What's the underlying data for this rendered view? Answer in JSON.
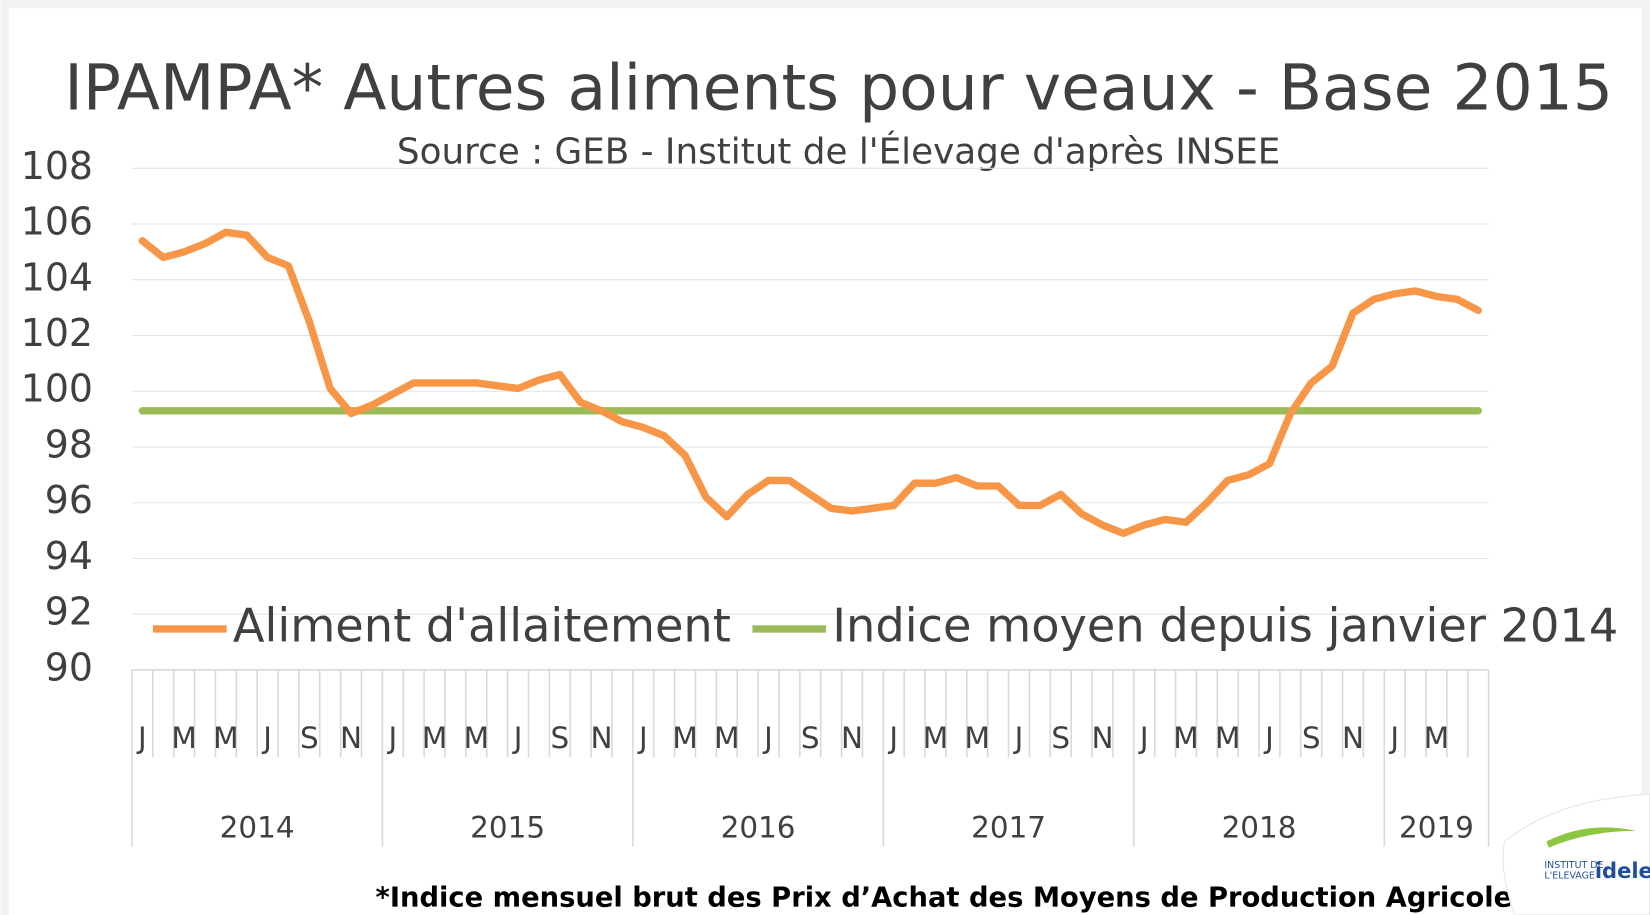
{
  "chart_data": {
    "type": "line",
    "title": "IPAMPA* Autres aliments pour veaux - Base 2015",
    "subtitle": "Source : GEB - Institut de l'Élevage d'après INSEE",
    "footnote": "*Indice mensuel brut des Prix d’Achat des Moyens de Production Agricole",
    "logo": {
      "line1": "INSTITUT DE",
      "line2": "L'ELEVAGE",
      "brand": "idele"
    },
    "categories": [
      "J",
      null,
      "M",
      null,
      "M",
      null,
      "J",
      null,
      "S",
      null,
      "N",
      null,
      "J",
      null,
      "M",
      null,
      "M",
      null,
      "J",
      null,
      "S",
      null,
      "N",
      null,
      "J",
      null,
      "M",
      null,
      "M",
      null,
      "J",
      null,
      "S",
      null,
      "N",
      null,
      "J",
      null,
      "M",
      null,
      "M",
      null,
      "J",
      null,
      "S",
      null,
      "N",
      null,
      "J",
      null,
      "M",
      null,
      "M",
      null,
      "J",
      null,
      "S",
      null,
      "N",
      null,
      "J",
      null,
      "M",
      null,
      null
    ],
    "years": [
      "2014",
      "2015",
      "2016",
      "2017",
      "2018",
      "2019"
    ],
    "series": [
      {
        "name": "Aliment d'allaitement",
        "color": "#f79646",
        "values": [
          105.4,
          104.8,
          105.0,
          105.3,
          105.7,
          105.6,
          104.8,
          104.5,
          102.5,
          100.1,
          99.2,
          99.5,
          99.9,
          100.3,
          100.3,
          100.3,
          100.3,
          100.2,
          100.1,
          100.4,
          100.6,
          99.6,
          99.3,
          98.9,
          98.7,
          98.4,
          97.7,
          96.2,
          95.5,
          96.3,
          96.8,
          96.8,
          96.3,
          95.8,
          95.7,
          95.8,
          95.9,
          96.7,
          96.7,
          96.9,
          96.6,
          96.6,
          95.9,
          95.9,
          96.3,
          95.6,
          95.2,
          94.9,
          95.2,
          95.4,
          95.3,
          96.0,
          96.8,
          97.0,
          97.4,
          99.2,
          100.3,
          100.9,
          102.8,
          103.3,
          103.5,
          103.6,
          103.4,
          103.3,
          102.9
        ]
      },
      {
        "name": "Indice moyen depuis janvier 2014",
        "color": "#9bbb59",
        "values": [
          99.3,
          99.3,
          99.3,
          99.3,
          99.3,
          99.3,
          99.3,
          99.3,
          99.3,
          99.3,
          99.3,
          99.3,
          99.3,
          99.3,
          99.3,
          99.3,
          99.3,
          99.3,
          99.3,
          99.3,
          99.3,
          99.3,
          99.3,
          99.3,
          99.3,
          99.3,
          99.3,
          99.3,
          99.3,
          99.3,
          99.3,
          99.3,
          99.3,
          99.3,
          99.3,
          99.3,
          99.3,
          99.3,
          99.3,
          99.3,
          99.3,
          99.3,
          99.3,
          99.3,
          99.3,
          99.3,
          99.3,
          99.3,
          99.3,
          99.3,
          99.3,
          99.3,
          99.3,
          99.3,
          99.3,
          99.3,
          99.3,
          99.3,
          99.3,
          99.3,
          99.3,
          99.3,
          99.3,
          99.3,
          99.3
        ]
      }
    ],
    "ylim": [
      90,
      108
    ],
    "yticks": [
      90,
      92,
      94,
      96,
      98,
      100,
      102,
      104,
      106,
      108
    ],
    "grid": true,
    "legend": "bottom"
  }
}
